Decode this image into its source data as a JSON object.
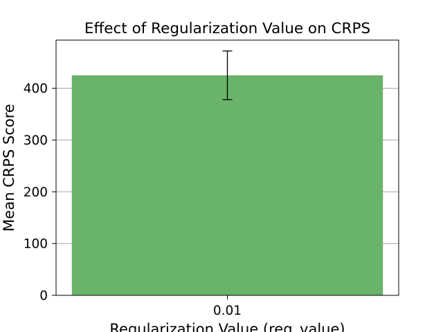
{
  "chart_data": {
    "type": "bar",
    "title": "Effect of Regularization Value on CRPS",
    "xlabel": "Regularization Value (reg_value)",
    "ylabel": "Mean CRPS Score",
    "categories": [
      "0.01"
    ],
    "series": [
      {
        "values": [
          425
        ],
        "error_low": [
          378
        ],
        "error_high": [
          472
        ]
      }
    ],
    "ylim": [
      0,
      493
    ],
    "yticks": [
      0,
      100,
      200,
      300,
      400
    ],
    "grid": "horizontal",
    "colors": {
      "bar": "#69b36a",
      "grid": "#b0b0b0",
      "axis": "#000000",
      "errorbar": "#000000"
    }
  }
}
